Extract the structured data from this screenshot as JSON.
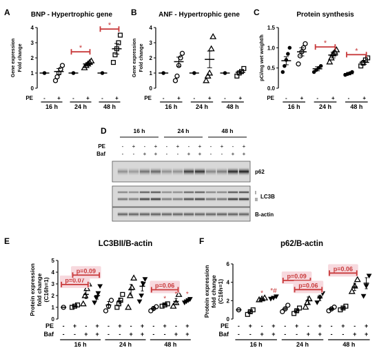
{
  "figure_panels": {
    "A_letter": "A",
    "B_letter": "B",
    "C_letter": "C",
    "D_letter": "D",
    "E_letter": "E",
    "F_letter": "F"
  },
  "chart_data": [
    {
      "panel": "A",
      "type": "scatter",
      "title": "BNP - Hypertrophic gene",
      "ylabel": [
        "Gene expression",
        "Fold change"
      ],
      "ylim": [
        0,
        4
      ],
      "yticks": [
        0,
        1,
        2,
        3,
        4
      ],
      "row_labels": [
        "PE"
      ],
      "rows": [
        [
          "-",
          "+",
          "-",
          "+",
          "-",
          "+"
        ]
      ],
      "groups": [
        "16 h",
        "24 h",
        "48 h"
      ],
      "colors": {
        "control": "#000000",
        "pe": "#000000",
        "sig": "#c8393a"
      },
      "series": [
        {
          "marker": "dot",
          "values": [
            1.0
          ],
          "mean": 1.0,
          "sem": 0
        },
        {
          "marker": "circle",
          "values": [
            0.5,
            0.75,
            1.0,
            1.25,
            1.5
          ],
          "mean": 1.1,
          "sem": 0.2
        },
        {
          "marker": "dot",
          "values": [
            1.0
          ],
          "mean": 1.0,
          "sem": 0
        },
        {
          "marker": "triangle",
          "values": [
            1.35,
            1.5,
            1.6,
            1.7,
            1.8
          ],
          "mean": 1.6,
          "sem": 0.08
        },
        {
          "marker": "dot",
          "values": [
            1.0
          ],
          "mean": 1.0,
          "sem": 0
        },
        {
          "marker": "square",
          "values": [
            1.7,
            2.2,
            2.6,
            3.0,
            3.5
          ],
          "mean": 2.6,
          "sem": 0.35
        }
      ],
      "brackets": [
        {
          "from": 2,
          "to": 3,
          "y": 2.4,
          "label": "*"
        },
        {
          "from": 4,
          "to": 5,
          "y": 3.9,
          "label": "*"
        }
      ]
    },
    {
      "panel": "B",
      "type": "scatter",
      "title": "ANF - Hypertrophic gene",
      "ylabel": [
        "Gene expression",
        "Fold change"
      ],
      "ylim": [
        0,
        4
      ],
      "yticks": [
        0,
        1,
        2,
        3,
        4
      ],
      "row_labels": [
        "PE"
      ],
      "rows": [
        [
          "-",
          "+",
          "-",
          "+",
          "-",
          "+"
        ]
      ],
      "groups": [
        "16 h",
        "24 h",
        "48 h"
      ],
      "series": [
        {
          "marker": "dot",
          "values": [
            1.0
          ],
          "mean": 1.0,
          "sem": 0
        },
        {
          "marker": "circle",
          "values": [
            0.5,
            0.8,
            1.5,
            2.0,
            2.3
          ],
          "mean": 1.75,
          "sem": 0.3
        },
        {
          "marker": "dot",
          "values": [
            1.0
          ],
          "mean": 1.0,
          "sem": 0
        },
        {
          "marker": "triangle",
          "values": [
            0.5,
            0.8,
            1.0,
            2.6,
            3.4
          ],
          "mean": 1.9,
          "sem": 0.55
        },
        {
          "marker": "dot",
          "values": [
            1.0
          ],
          "mean": 1.0,
          "sem": 0
        },
        {
          "marker": "square",
          "values": [
            0.8,
            1.0,
            1.1,
            1.3
          ],
          "mean": 1.05,
          "sem": 0.1
        }
      ],
      "brackets": []
    },
    {
      "panel": "C",
      "type": "scatter",
      "title": "Protein synthesis",
      "ylabel": [
        "pCi/mg wet weight/h"
      ],
      "ylim": [
        0.0,
        1.5
      ],
      "yticks": [
        "0.0",
        "0.5",
        "1.0",
        "1.5"
      ],
      "row_labels": [
        "PE"
      ],
      "rows": [
        [
          "-",
          "+",
          "-",
          "+",
          "-",
          "+"
        ]
      ],
      "groups": [
        "16 h",
        "24 h",
        "48 h"
      ],
      "series": [
        {
          "marker": "dot",
          "values": [
            0.4,
            0.55,
            0.7,
            0.85,
            1.0
          ],
          "mean": 0.68,
          "sem": 0.1
        },
        {
          "marker": "circle",
          "values": [
            0.6,
            0.8,
            0.9,
            1.0,
            1.1
          ],
          "mean": 0.9,
          "sem": 0.1
        },
        {
          "marker": "dot",
          "values": [
            0.4,
            0.45,
            0.5,
            0.55
          ],
          "mean": 0.48,
          "sem": 0.05
        },
        {
          "marker": "triangle",
          "values": [
            0.65,
            0.75,
            0.85,
            0.9,
            0.95
          ],
          "mean": 0.82,
          "sem": 0.07
        },
        {
          "marker": "dot",
          "values": [
            0.33,
            0.35,
            0.37,
            0.4
          ],
          "mean": 0.36,
          "sem": 0.03
        },
        {
          "marker": "square",
          "values": [
            0.55,
            0.62,
            0.7,
            0.75
          ],
          "mean": 0.64,
          "sem": 0.05
        }
      ],
      "brackets": [
        {
          "from": 2,
          "to": 3,
          "y": 1.02,
          "label": "*"
        },
        {
          "from": 4,
          "to": 5,
          "y": 0.83,
          "label": "*"
        }
      ]
    },
    {
      "panel": "E",
      "type": "scatter",
      "title": "LC3BII/B-actin",
      "ylabel": [
        "Protein expression",
        "fold change",
        "(C16h=1)"
      ],
      "ylim": [
        0,
        5
      ],
      "yticks": [
        0,
        1,
        2,
        3,
        4,
        5
      ],
      "row_labels": [
        "PE",
        "Baf"
      ],
      "rows": [
        [
          "-",
          "+",
          "-",
          "+",
          "-",
          "+",
          "-",
          "+",
          "-",
          "+",
          "-",
          "+"
        ],
        [
          "-",
          "-",
          "+",
          "+",
          "-",
          "-",
          "+",
          "+",
          "-",
          "-",
          "+",
          "+"
        ]
      ],
      "groups": [
        "16 h",
        "24 h",
        "48 h"
      ],
      "series": [
        {
          "marker": "circle",
          "values": [
            1.0
          ],
          "mean": 1.0,
          "sem": 0
        },
        {
          "marker": "square",
          "values": [
            1.0,
            1.1,
            1.2
          ],
          "mean": 1.1,
          "sem": 0.05
        },
        {
          "marker": "triangle",
          "values": [
            1.3,
            2.0,
            2.6,
            3.0
          ],
          "mean": 2.1,
          "sem": 0.35
        },
        {
          "marker": "down-triangle",
          "values": [
            1.4,
            1.8,
            2.2,
            2.8
          ],
          "mean": 2.0,
          "sem": 0.3
        },
        {
          "marker": "circle",
          "values": [
            0.7,
            1.1,
            1.6
          ],
          "mean": 1.2,
          "sem": 0.3
        },
        {
          "marker": "square",
          "values": [
            1.0,
            1.3,
            1.6,
            2.1
          ],
          "mean": 1.55,
          "sem": 0.25
        },
        {
          "marker": "triangle",
          "values": [
            1.0,
            2.0,
            2.7,
            3.5
          ],
          "mean": 2.5,
          "sem": 0.45
        },
        {
          "marker": "down-triangle",
          "values": [
            1.5,
            2.0,
            3.0,
            3.4
          ],
          "mean": 2.8,
          "sem": 0.4
        },
        {
          "marker": "circle",
          "values": [
            0.7,
            0.9,
            1.05
          ],
          "mean": 0.9,
          "sem": 0.1
        },
        {
          "marker": "square",
          "values": [
            1.1,
            1.2,
            1.3
          ],
          "mean": 1.25,
          "sem": 0.05
        },
        {
          "marker": "triangle",
          "values": [
            1.1,
            1.4,
            2.1
          ],
          "mean": 1.5,
          "sem": 0.25
        },
        {
          "marker": "down-triangle",
          "values": [
            1.4,
            1.5,
            1.6,
            1.7
          ],
          "mean": 1.55,
          "sem": 0.07
        }
      ],
      "stars": [
        {
          "index": 9,
          "y": 1.55,
          "label": "*"
        },
        {
          "index": 10,
          "y": 1.95,
          "label": "*"
        },
        {
          "index": 11,
          "y": 1.95,
          "label": "*"
        }
      ],
      "brackets": [
        {
          "from": 0,
          "to": 2,
          "y": 2.95,
          "label": "p=0.07"
        },
        {
          "from": 1,
          "to": 3,
          "y": 3.75,
          "label": "p=0.09"
        },
        {
          "from": 8,
          "to": 10,
          "y": 2.5,
          "label": "p=0.06"
        }
      ]
    },
    {
      "panel": "F",
      "type": "scatter",
      "title": "p62/B-actin",
      "ylabel": [
        "Protein expression",
        "fold change",
        "(C16h=1)"
      ],
      "ylim": [
        0,
        6
      ],
      "yticks": [
        0,
        2,
        4,
        6
      ],
      "row_labels": [
        "PE",
        "Baf"
      ],
      "rows": [
        [
          "-",
          "+",
          "-",
          "+",
          "-",
          "+",
          "-",
          "+",
          "-",
          "+",
          "-",
          "+"
        ],
        [
          "-",
          "-",
          "+",
          "+",
          "-",
          "-",
          "+",
          "+",
          "-",
          "-",
          "+",
          "+"
        ]
      ],
      "groups": [
        "16 h",
        "24 h",
        "48 h"
      ],
      "series": [
        {
          "marker": "circle",
          "values": [
            1.0
          ],
          "mean": 1.0,
          "sem": 0
        },
        {
          "marker": "square",
          "values": [
            0.5,
            0.8,
            1.0
          ],
          "mean": 0.8,
          "sem": 0.15
        },
        {
          "marker": "triangle",
          "values": [
            2.1,
            2.2,
            2.3
          ],
          "mean": 2.2,
          "sem": 0.05
        },
        {
          "marker": "down-triangle",
          "values": [
            2.2,
            2.3,
            2.45
          ],
          "mean": 2.35,
          "sem": 0.05
        },
        {
          "marker": "circle",
          "values": [
            0.8,
            1.1,
            1.5
          ],
          "mean": 1.1,
          "sem": 0.2
        },
        {
          "marker": "square",
          "values": [
            0.6,
            0.9,
            1.2
          ],
          "mean": 0.9,
          "sem": 0.15
        },
        {
          "marker": "triangle",
          "values": [
            1.3,
            1.8,
            2.2,
            3.2
          ],
          "mean": 2.0,
          "sem": 0.4
        },
        {
          "marker": "down-triangle",
          "values": [
            1.8,
            2.3,
            2.8
          ],
          "mean": 2.3,
          "sem": 0.3
        },
        {
          "marker": "circle",
          "values": [
            0.9,
            1.1,
            1.3
          ],
          "mean": 1.1,
          "sem": 0.1
        },
        {
          "marker": "square",
          "values": [
            1.0,
            1.2,
            1.4
          ],
          "mean": 1.2,
          "sem": 0.1
        },
        {
          "marker": "triangle",
          "values": [
            3.0,
            3.6,
            4.3
          ],
          "mean": 3.5,
          "sem": 0.4
        },
        {
          "marker": "down-triangle",
          "values": [
            2.5,
            3.6,
            4.7
          ],
          "mean": 3.9,
          "sem": 0.6
        }
      ],
      "stars": [
        {
          "index": 2,
          "y": 2.6,
          "label": "*"
        },
        {
          "index": 3,
          "y": 2.85,
          "label": "*#"
        }
      ],
      "brackets": [
        {
          "from": 4,
          "to": 6,
          "y": 4.2,
          "label": "p=0.09"
        },
        {
          "from": 5,
          "to": 7,
          "y": 3.2,
          "label": "p=0.06"
        },
        {
          "from": 8,
          "to": 10,
          "y": 5.0,
          "label": "p=0.06"
        }
      ]
    }
  ],
  "blot": {
    "group_labels": [
      "16 h",
      "24 h",
      "48 h"
    ],
    "pe_label": "PE",
    "baf_label": "Baf",
    "pe_signs": [
      "-",
      "+",
      "-",
      "+",
      "-",
      "+",
      "-",
      "+",
      "-",
      "+",
      "-",
      "+"
    ],
    "baf_signs": [
      "-",
      "-",
      "+",
      "+",
      "-",
      "-",
      "+",
      "+",
      "-",
      "-",
      "+",
      "+"
    ],
    "rows": [
      {
        "name": "p62",
        "label": "p62",
        "intensity": [
          0.35,
          0.3,
          0.5,
          0.55,
          0.35,
          0.35,
          0.75,
          0.8,
          0.4,
          0.45,
          0.85,
          0.9
        ]
      },
      {
        "name": "lc3b",
        "label": "LC3B",
        "sub_labels": [
          "I",
          "II"
        ],
        "intensity": [
          0.55,
          0.5,
          0.8,
          0.85,
          0.5,
          0.5,
          0.75,
          0.8,
          0.55,
          0.55,
          0.85,
          0.9
        ]
      },
      {
        "name": "b-actin",
        "label": "B-actin",
        "intensity": [
          0.6,
          0.6,
          0.62,
          0.62,
          0.6,
          0.6,
          0.62,
          0.6,
          0.6,
          0.62,
          0.62,
          0.6
        ]
      }
    ]
  }
}
